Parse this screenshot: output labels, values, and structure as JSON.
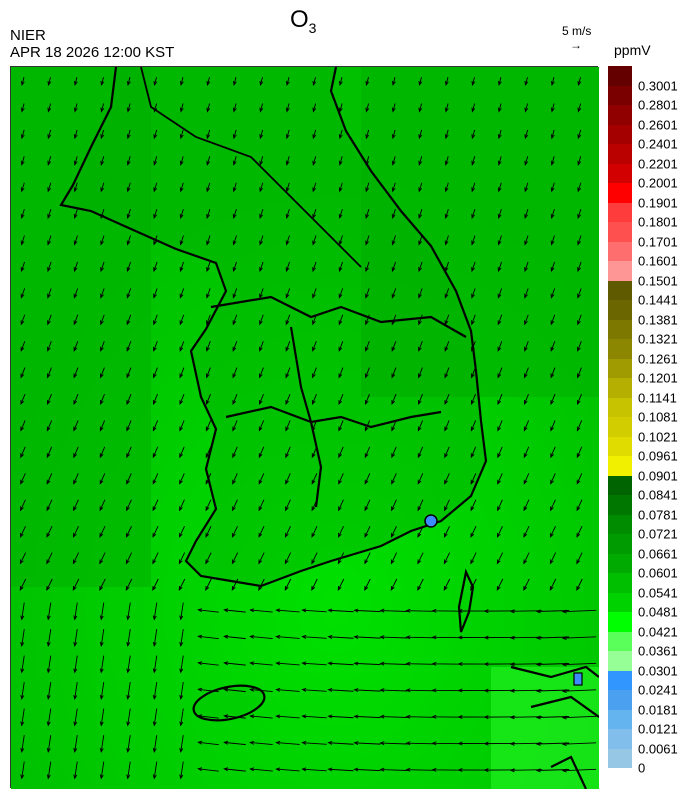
{
  "header": {
    "title": "O",
    "title_sub": "3",
    "agency": "NIER",
    "datetime": "APR 18 2026 12:00 KST"
  },
  "wind_reference": {
    "label": "5 m/s",
    "arrow": "→"
  },
  "colorbar": {
    "unit": "ppmV",
    "labels": [
      "0.3001",
      "0.2801",
      "0.2601",
      "0.2401",
      "0.2201",
      "0.2001",
      "0.1901",
      "0.1801",
      "0.1701",
      "0.1601",
      "0.1501",
      "0.1441",
      "0.1381",
      "0.1321",
      "0.1261",
      "0.1201",
      "0.1141",
      "0.1081",
      "0.1021",
      "0.0961",
      "0.0901",
      "0.0841",
      "0.0781",
      "0.0721",
      "0.0661",
      "0.0601",
      "0.0541",
      "0.0481",
      "0.0421",
      "0.0361",
      "0.0301",
      "0.0241",
      "0.0181",
      "0.0121",
      "0.0061",
      "0"
    ],
    "colors": [
      "#640000",
      "#7a0000",
      "#900000",
      "#a50000",
      "#bb0000",
      "#d20000",
      "#ff0000",
      "#ff3c3c",
      "#ff5050",
      "#ff6e6e",
      "#ff9696",
      "#5f5a00",
      "#6b6600",
      "#7d7800",
      "#8c8700",
      "#a09b00",
      "#b4af00",
      "#c8c300",
      "#d2cd00",
      "#e1dc00",
      "#f0f000",
      "#006400",
      "#007800",
      "#008c00",
      "#009b00",
      "#00aa00",
      "#00be00",
      "#00d200",
      "#00ff00",
      "#5aff5a",
      "#96ff96",
      "#3296ff",
      "#4ba0f0",
      "#64b4f0",
      "#82beeb",
      "#96c8e6"
    ]
  },
  "map": {
    "background_color": "#00c000",
    "coast_color": "#000000"
  }
}
